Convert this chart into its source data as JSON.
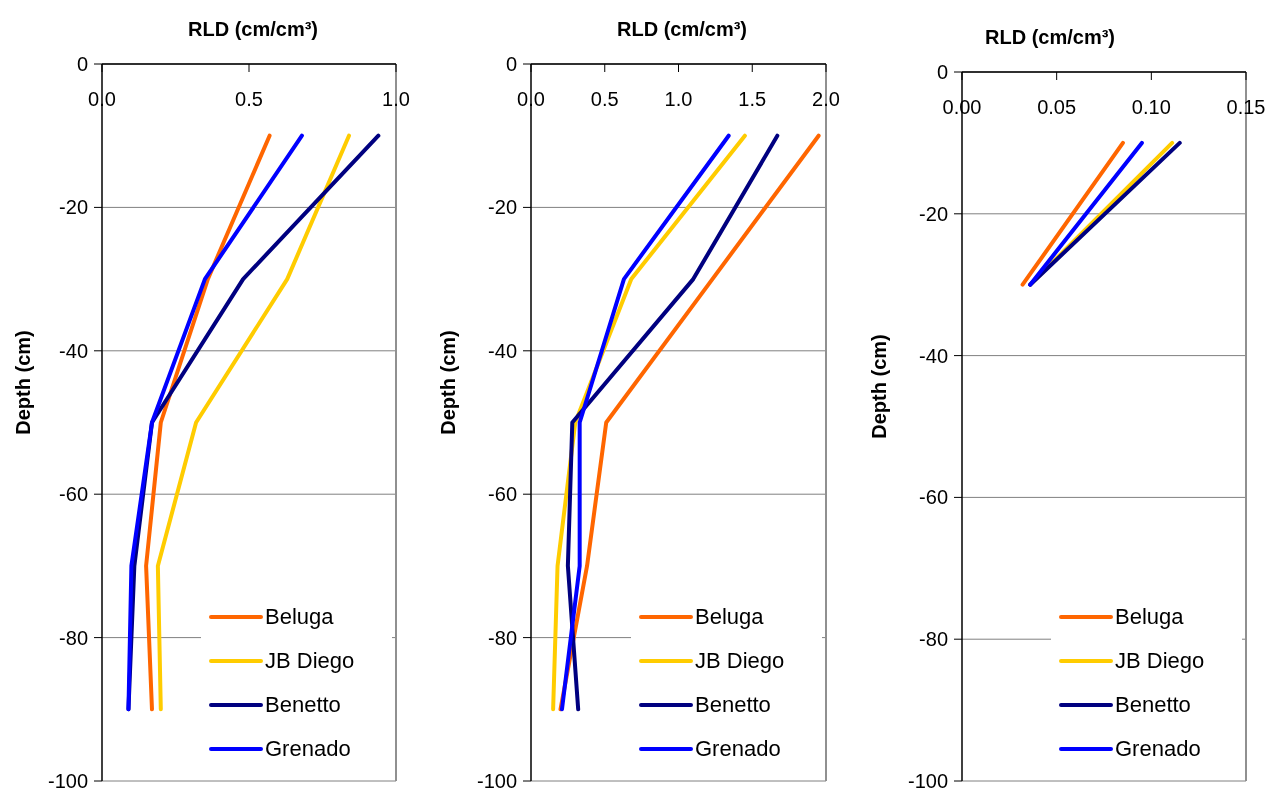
{
  "chart_data": [
    {
      "type": "line",
      "title": "RLD (cm/cm³)",
      "ylabel": "Depth (cm)",
      "xlim": [
        0,
        1
      ],
      "xticks": [
        {
          "value": 0,
          "label": "0.0"
        },
        0.5,
        {
          "value": 1,
          "label": "1.0"
        }
      ],
      "ylim": [
        -100,
        0
      ],
      "yticks": [
        -100,
        -80,
        -60,
        -40,
        -20,
        0
      ],
      "grid": "y",
      "legend": "bottom right",
      "series": [
        {
          "name": "Beluga",
          "color": "#ff6600",
          "x": [
            0.57,
            0.36,
            0.2,
            0.15,
            0.17
          ],
          "values": [
            -10,
            -30,
            -50,
            -70,
            -90
          ]
        },
        {
          "name": "JB Diego",
          "color": "#ffcc00",
          "x": [
            0.84,
            0.63,
            0.32,
            0.19,
            0.2
          ],
          "values": [
            -10,
            -30,
            -50,
            -70,
            -90
          ]
        },
        {
          "name": "Benetto",
          "color": "#000080",
          "x": [
            0.94,
            0.48,
            0.17,
            0.11,
            0.09
          ],
          "values": [
            -10,
            -30,
            -50,
            -70,
            -90
          ]
        },
        {
          "name": "Grenado",
          "color": "#0000ff",
          "x": [
            0.68,
            0.35,
            0.17,
            0.1,
            0.09
          ],
          "values": [
            -10,
            -30,
            -50,
            -70,
            -90
          ]
        }
      ]
    },
    {
      "type": "line",
      "title": "RLD (cm/cm³)",
      "ylabel": "Depth (cm)",
      "xlim": [
        0,
        2
      ],
      "xticks": [
        {
          "value": 0,
          "label": "0.0"
        },
        0.5,
        {
          "value": 1,
          "label": "1.0"
        },
        1.5,
        {
          "value": 2,
          "label": "2.0"
        }
      ],
      "ylim": [
        -100,
        0
      ],
      "yticks": [
        -100,
        -80,
        -60,
        -40,
        -20,
        0
      ],
      "grid": "y",
      "legend": "bottom right",
      "series": [
        {
          "name": "Beluga",
          "color": "#ff6600",
          "x": [
            1.95,
            1.23,
            0.51,
            0.38,
            0.2
          ],
          "values": [
            -10,
            -30,
            -50,
            -70,
            -90
          ]
        },
        {
          "name": "JB Diego",
          "color": "#ffcc00",
          "x": [
            1.45,
            0.68,
            0.3,
            0.18,
            0.15
          ],
          "values": [
            -10,
            -30,
            -50,
            -70,
            -90
          ]
        },
        {
          "name": "Benetto",
          "color": "#000080",
          "x": [
            1.67,
            1.1,
            0.28,
            0.25,
            0.32
          ],
          "values": [
            -10,
            -30,
            -50,
            -70,
            -90
          ]
        },
        {
          "name": "Grenado",
          "color": "#0000ff",
          "x": [
            1.34,
            0.63,
            0.33,
            0.33,
            0.21
          ],
          "values": [
            -10,
            -30,
            -50,
            -70,
            -90
          ]
        }
      ]
    },
    {
      "type": "line",
      "title": "RLD (cm/cm³)",
      "ylabel": "Depth (cm)",
      "xlim": [
        0,
        0.15
      ],
      "xticks": [
        {
          "value": 0,
          "label": "0.00"
        },
        0.05,
        {
          "value": 0.1,
          "label": "0.10"
        },
        0.15
      ],
      "ylim": [
        -100,
        0
      ],
      "yticks": [
        -100,
        -80,
        -60,
        -40,
        -20,
        0
      ],
      "grid": "y",
      "legend": "bottom right",
      "series": [
        {
          "name": "Beluga",
          "color": "#ff6600",
          "x": [
            0.085,
            0.032
          ],
          "values": [
            -10,
            -30
          ]
        },
        {
          "name": "JB Diego",
          "color": "#ffcc00",
          "x": [
            0.111,
            0.036
          ],
          "values": [
            -10,
            -30
          ]
        },
        {
          "name": "Benetto",
          "color": "#000080",
          "x": [
            0.115,
            0.036
          ],
          "values": [
            -10,
            -30
          ]
        },
        {
          "name": "Grenado",
          "color": "#0000ff",
          "x": [
            0.095,
            0.036
          ],
          "values": [
            -10,
            -30
          ]
        }
      ]
    }
  ]
}
